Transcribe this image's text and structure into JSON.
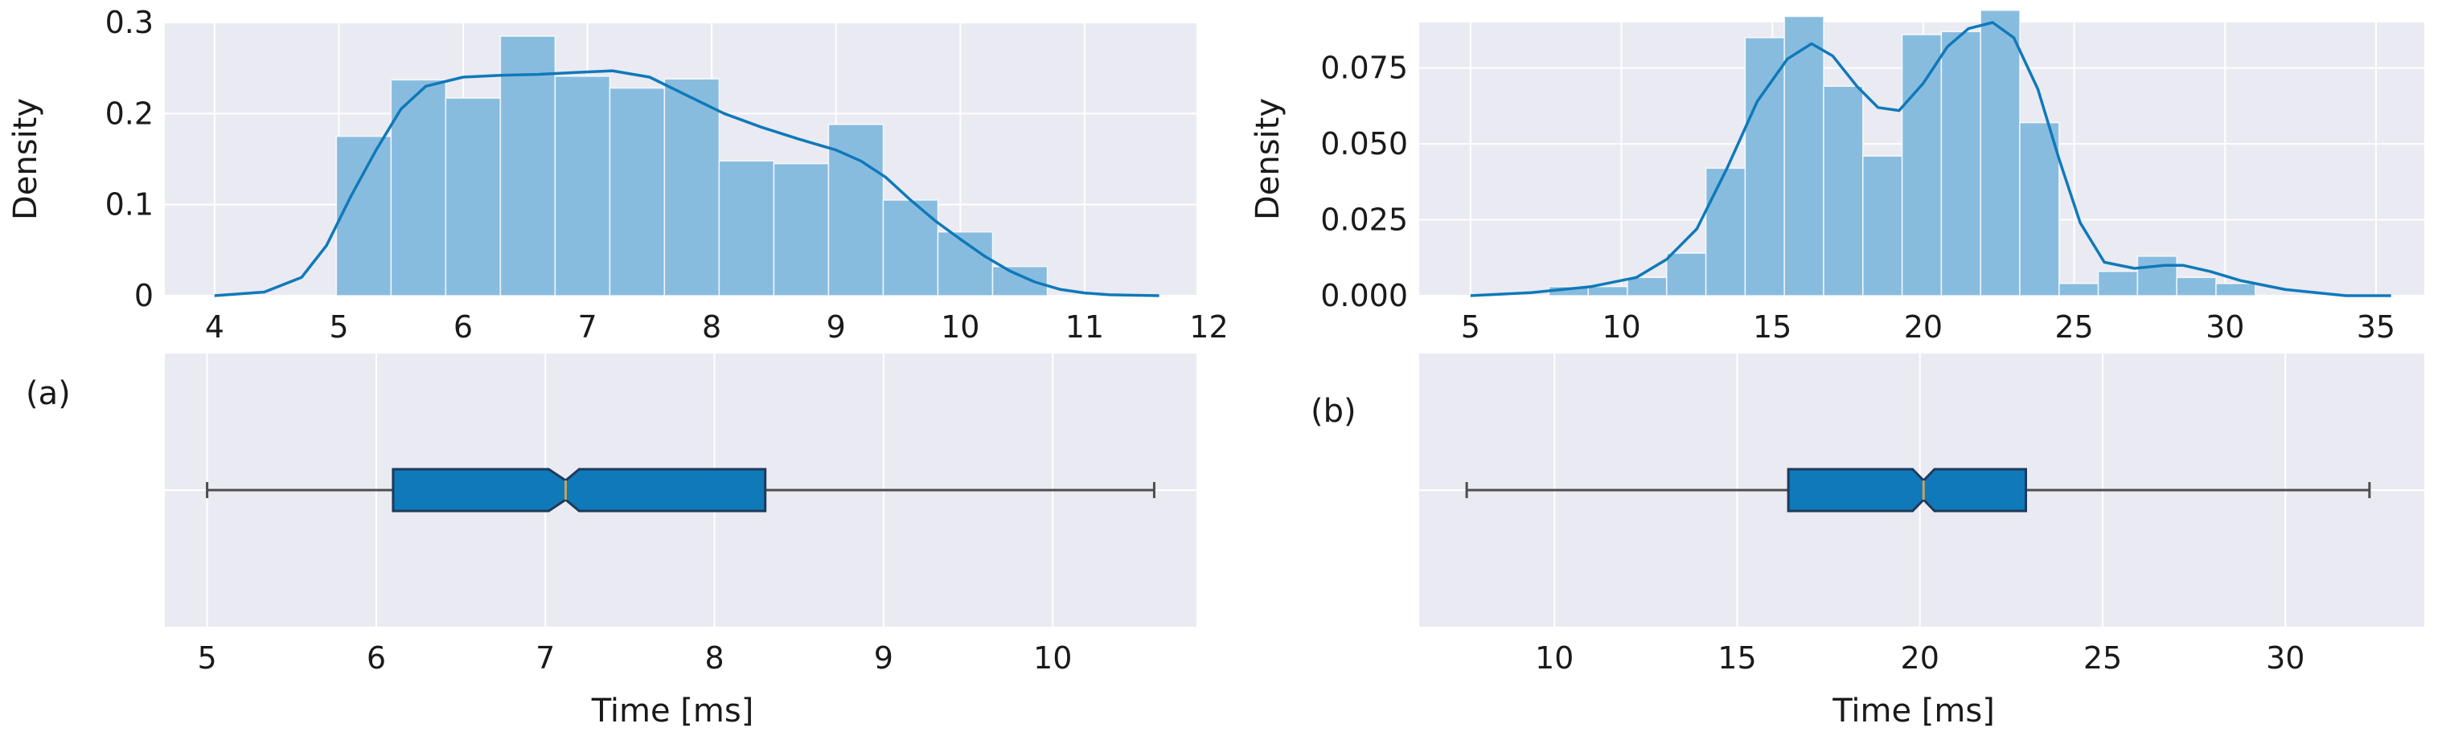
{
  "colors": {
    "panel_background": "#eaeaf2",
    "grid": "#ffffff",
    "histogram_fill": "#88bcdf",
    "kde_line": "#0f79b9",
    "box_fill": "#0f79b9",
    "box_edge": "#1f3a5a",
    "whisker": "#4d4d4d",
    "median": "#c8a060"
  },
  "panel_labels": [
    "(a)",
    "(b)"
  ],
  "chart_data": [
    {
      "type": "histogram",
      "panel": "a-top",
      "xlabel": "",
      "ylabel": "Density",
      "xlim": [
        3.6,
        11.9
      ],
      "ylim": [
        0,
        0.3
      ],
      "xticks": [
        4,
        5,
        6,
        7,
        8,
        9,
        10,
        11,
        12
      ],
      "yticks": [
        0,
        0.1,
        0.2,
        0.3
      ],
      "ytick_labels": [
        "0",
        "0.1",
        "0.2",
        "0.3"
      ],
      "grid": true,
      "bins": {
        "edges": [
          4.98,
          5.42,
          5.86,
          6.3,
          6.74,
          7.18,
          7.62,
          8.06,
          8.5,
          8.94,
          9.38,
          9.82,
          10.26,
          10.7
        ],
        "density": [
          0.175,
          0.237,
          0.217,
          0.285,
          0.241,
          0.228,
          0.238,
          0.148,
          0.145,
          0.188,
          0.105,
          0.07,
          0.032
        ]
      },
      "kde": {
        "x": [
          4.0,
          4.4,
          4.7,
          4.9,
          5.1,
          5.3,
          5.5,
          5.7,
          6.0,
          6.3,
          6.6,
          6.9,
          7.2,
          7.5,
          7.8,
          8.1,
          8.4,
          8.7,
          9.0,
          9.2,
          9.4,
          9.6,
          9.8,
          10.0,
          10.2,
          10.4,
          10.6,
          10.8,
          11.0,
          11.2,
          11.6
        ],
        "y": [
          0.0,
          0.004,
          0.02,
          0.055,
          0.11,
          0.16,
          0.205,
          0.23,
          0.24,
          0.242,
          0.243,
          0.245,
          0.247,
          0.24,
          0.22,
          0.2,
          0.185,
          0.172,
          0.16,
          0.148,
          0.13,
          0.105,
          0.082,
          0.062,
          0.043,
          0.027,
          0.015,
          0.007,
          0.003,
          0.001,
          0.0
        ]
      }
    },
    {
      "type": "boxplot",
      "panel": "a-bottom",
      "xlabel": "Time [ms]",
      "xlim": [
        4.75,
        10.85
      ],
      "xticks": [
        5,
        6,
        7,
        8,
        9,
        10
      ],
      "grid": true,
      "notched": true,
      "box": {
        "whisker_low": 5.0,
        "q1": 6.1,
        "notch_low": 7.02,
        "median": 7.12,
        "notch_high": 7.2,
        "q3": 8.3,
        "whisker_high": 10.6
      }
    },
    {
      "type": "histogram",
      "panel": "b-top",
      "xlabel": "",
      "ylabel": "Density",
      "xlim": [
        3.3,
        36.6
      ],
      "ylim": [
        0,
        0.09
      ],
      "xticks": [
        5,
        10,
        15,
        20,
        25,
        30,
        35
      ],
      "yticks": [
        0.0,
        0.025,
        0.05,
        0.075
      ],
      "ytick_labels": [
        "0.000",
        "0.025",
        "0.050",
        "0.075"
      ],
      "grid": true,
      "bins": {
        "edges": [
          7.6,
          8.9,
          10.2,
          11.5,
          12.8,
          14.1,
          15.4,
          16.7,
          18.0,
          19.3,
          20.6,
          21.9,
          23.2,
          24.5,
          25.8,
          27.1,
          28.4,
          29.7,
          31.0,
          32.3
        ],
        "density": [
          0.003,
          0.003,
          0.006,
          0.014,
          0.042,
          0.085,
          0.092,
          0.069,
          0.046,
          0.086,
          0.087,
          0.094,
          0.057,
          0.004,
          0.008,
          0.013,
          0.006,
          0.004,
          0.0
        ]
      },
      "kde": {
        "x": [
          5.0,
          7.0,
          9.0,
          10.5,
          11.5,
          12.5,
          13.5,
          14.5,
          15.5,
          16.3,
          17.0,
          17.8,
          18.5,
          19.2,
          20.0,
          20.8,
          21.5,
          22.3,
          23.0,
          23.8,
          24.5,
          25.2,
          26.0,
          27.0,
          28.0,
          28.6,
          29.5,
          30.5,
          32.0,
          34.0,
          35.5
        ],
        "y": [
          0.0,
          0.001,
          0.003,
          0.006,
          0.012,
          0.022,
          0.042,
          0.064,
          0.078,
          0.083,
          0.079,
          0.069,
          0.062,
          0.061,
          0.07,
          0.082,
          0.088,
          0.09,
          0.085,
          0.068,
          0.045,
          0.024,
          0.011,
          0.009,
          0.01,
          0.01,
          0.008,
          0.005,
          0.002,
          0.0,
          0.0
        ]
      }
    },
    {
      "type": "boxplot",
      "panel": "b-bottom",
      "xlabel": "Time [ms]",
      "xlim": [
        6.3,
        33.8
      ],
      "xticks": [
        10,
        15,
        20,
        25,
        30
      ],
      "grid": true,
      "notched": true,
      "box": {
        "whisker_low": 7.6,
        "q1": 16.4,
        "notch_low": 19.8,
        "median": 20.1,
        "notch_high": 20.4,
        "q3": 22.9,
        "whisker_high": 32.3
      }
    }
  ]
}
